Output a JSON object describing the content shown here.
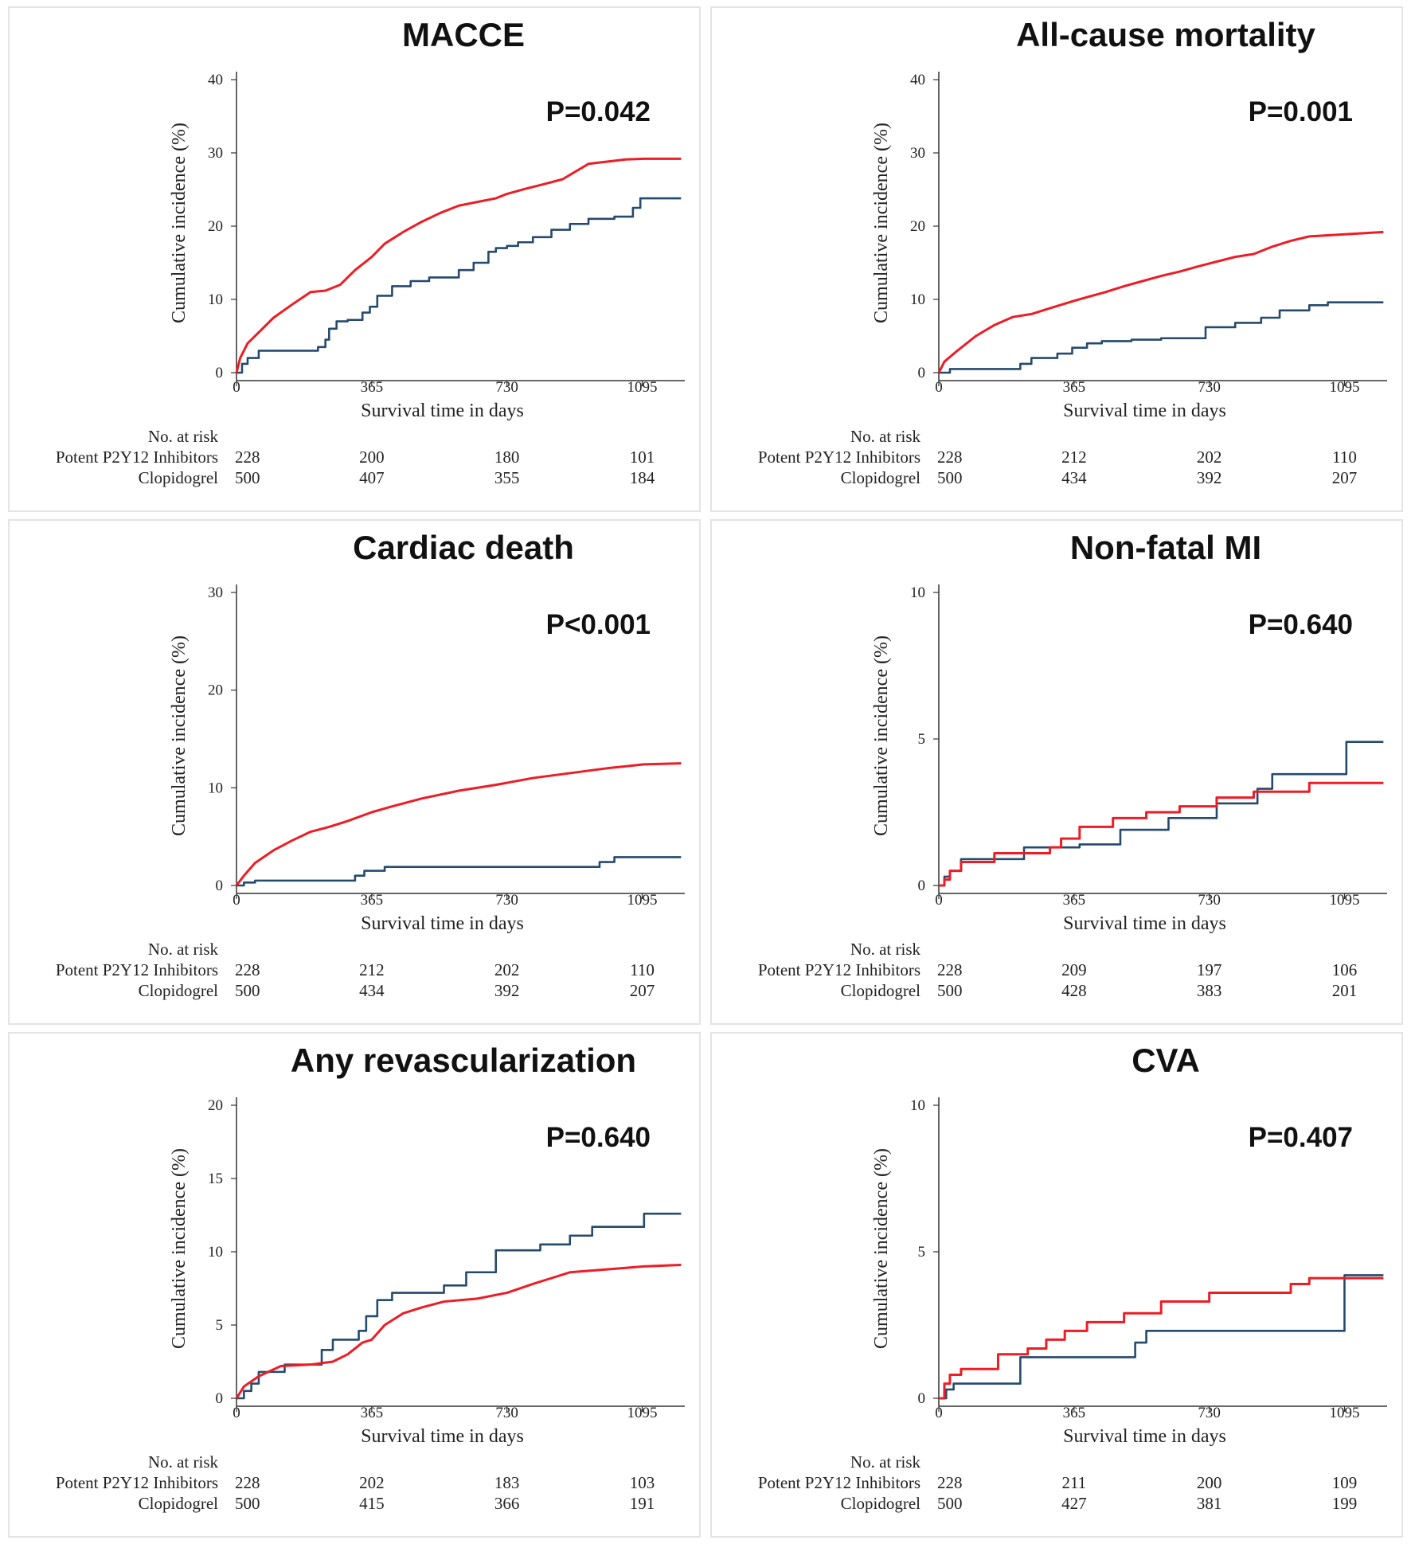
{
  "colors": {
    "potent": "#ee1c25",
    "clopidogrel": "#244a6e",
    "axis": "#333333"
  },
  "shared": {
    "xlabel": "Survival time in days",
    "ylabel": "Cumulative incidence (%)",
    "risk_header": "No. at risk",
    "group_potent": "Potent P2Y12 Inhibitors",
    "group_clopidogrel": "Clopidogrel"
  },
  "chart_data": [
    {
      "type": "line",
      "title": "MACCE",
      "pvalue": "P=0.042",
      "xlabel": "Survival time in days",
      "ylabel": "Cumulative incidence (%)",
      "xticks": [
        0,
        365,
        730,
        1095
      ],
      "xlim": [
        0,
        1210
      ],
      "yticks": [
        0,
        10,
        20,
        30,
        40
      ],
      "ylim": [
        0,
        40
      ],
      "risk": {
        "potent": [
          "228",
          "200",
          "180",
          "101"
        ],
        "clopidogrel": [
          "500",
          "407",
          "355",
          "184"
        ]
      },
      "series": [
        {
          "name": "Clopidogrel",
          "color": "#244a6e",
          "step": true,
          "x": [
            0,
            15,
            30,
            60,
            220,
            240,
            250,
            270,
            300,
            340,
            360,
            380,
            420,
            470,
            520,
            600,
            640,
            680,
            700,
            730,
            760,
            800,
            850,
            900,
            950,
            1020,
            1070,
            1090,
            1200
          ],
          "y": [
            0,
            1.2,
            2,
            3,
            3.5,
            4.5,
            6,
            7,
            7.2,
            8.2,
            9,
            10.5,
            11.8,
            12.5,
            13,
            14,
            15,
            16.5,
            17,
            17.3,
            17.8,
            18.5,
            19.5,
            20.3,
            21,
            21.3,
            22.5,
            23.8,
            23.8
          ]
        },
        {
          "name": "Potent P2Y12 Inhibitors",
          "color": "#ee1c25",
          "step": false,
          "x": [
            0,
            10,
            30,
            60,
            100,
            150,
            200,
            240,
            280,
            320,
            365,
            400,
            450,
            500,
            550,
            600,
            650,
            700,
            730,
            780,
            820,
            880,
            950,
            1000,
            1050,
            1100,
            1200
          ],
          "y": [
            0,
            2,
            4,
            5.5,
            7.5,
            9.3,
            11,
            11.2,
            12,
            14,
            15.8,
            17.6,
            19.2,
            20.6,
            21.8,
            22.8,
            23.3,
            23.8,
            24.4,
            25.1,
            25.6,
            26.4,
            28.5,
            28.8,
            29.1,
            29.2,
            29.2
          ]
        }
      ]
    },
    {
      "type": "line",
      "title": "All-cause mortality",
      "pvalue": "P=0.001",
      "xlabel": "Survival time in days",
      "ylabel": "Cumulative incidence (%)",
      "xticks": [
        0,
        365,
        730,
        1095
      ],
      "xlim": [
        0,
        1210
      ],
      "yticks": [
        0,
        10,
        20,
        30,
        40
      ],
      "ylim": [
        0,
        40
      ],
      "risk": {
        "potent": [
          "228",
          "212",
          "202",
          "110"
        ],
        "clopidogrel": [
          "500",
          "434",
          "392",
          "207"
        ]
      },
      "series": [
        {
          "name": "Clopidogrel",
          "color": "#244a6e",
          "step": true,
          "x": [
            0,
            30,
            60,
            220,
            250,
            320,
            360,
            400,
            440,
            520,
            600,
            720,
            800,
            870,
            920,
            1000,
            1050,
            1200
          ],
          "y": [
            0,
            0.5,
            0.5,
            1.2,
            2,
            2.6,
            3.4,
            4,
            4.3,
            4.5,
            4.7,
            6.2,
            6.8,
            7.5,
            8.5,
            9.2,
            9.6,
            9.6
          ]
        },
        {
          "name": "Potent P2Y12 Inhibitors",
          "color": "#ee1c25",
          "step": false,
          "x": [
            0,
            15,
            50,
            100,
            150,
            200,
            250,
            300,
            365,
            400,
            450,
            500,
            550,
            600,
            650,
            700,
            730,
            800,
            850,
            900,
            950,
            1000,
            1100,
            1200
          ],
          "y": [
            0,
            1.5,
            3,
            5,
            6.5,
            7.6,
            8,
            8.8,
            9.8,
            10.3,
            11,
            11.8,
            12.5,
            13.2,
            13.8,
            14.5,
            14.9,
            15.8,
            16.2,
            17.2,
            18,
            18.6,
            18.9,
            19.2
          ]
        }
      ]
    },
    {
      "type": "line",
      "title": "Cardiac death",
      "pvalue": "P<0.001",
      "xlabel": "Survival time in days",
      "ylabel": "Cumulative incidence (%)",
      "xticks": [
        0,
        365,
        730,
        1095
      ],
      "xlim": [
        0,
        1210
      ],
      "yticks": [
        0,
        10,
        20,
        30
      ],
      "ylim": [
        0,
        30
      ],
      "risk": {
        "potent": [
          "228",
          "212",
          "202",
          "110"
        ],
        "clopidogrel": [
          "500",
          "434",
          "392",
          "207"
        ]
      },
      "series": [
        {
          "name": "Clopidogrel",
          "color": "#244a6e",
          "step": true,
          "x": [
            0,
            20,
            50,
            300,
            320,
            345,
            400,
            950,
            980,
            1020,
            1200
          ],
          "y": [
            0,
            0.3,
            0.5,
            0.5,
            1,
            1.5,
            1.9,
            1.9,
            2.4,
            2.9,
            2.9
          ]
        },
        {
          "name": "Potent P2Y12 Inhibitors",
          "color": "#ee1c25",
          "step": false,
          "x": [
            0,
            20,
            50,
            100,
            150,
            200,
            250,
            300,
            365,
            420,
            500,
            600,
            700,
            800,
            900,
            1000,
            1050,
            1100,
            1200
          ],
          "y": [
            0,
            1,
            2.3,
            3.6,
            4.6,
            5.5,
            6,
            6.6,
            7.5,
            8.1,
            8.9,
            9.7,
            10.3,
            11,
            11.5,
            12,
            12.2,
            12.4,
            12.5
          ]
        }
      ]
    },
    {
      "type": "line",
      "title": "Non-fatal MI",
      "pvalue": "P=0.640",
      "xlabel": "Survival time in days",
      "ylabel": "Cumulative incidence (%)",
      "xticks": [
        0,
        365,
        730,
        1095
      ],
      "xlim": [
        0,
        1210
      ],
      "yticks": [
        0,
        5,
        10
      ],
      "ylim": [
        0,
        10
      ],
      "risk": {
        "potent": [
          "228",
          "209",
          "197",
          "106"
        ],
        "clopidogrel": [
          "500",
          "428",
          "383",
          "201"
        ]
      },
      "series": [
        {
          "name": "Clopidogrel",
          "color": "#244a6e",
          "step": true,
          "x": [
            0,
            15,
            30,
            60,
            150,
            230,
            380,
            490,
            620,
            750,
            860,
            900,
            1100,
            1200
          ],
          "y": [
            0,
            0.3,
            0.5,
            0.9,
            0.9,
            1.3,
            1.4,
            1.9,
            2.3,
            2.8,
            3.3,
            3.8,
            4.9,
            4.9
          ]
        },
        {
          "name": "Potent P2Y12 Inhibitors",
          "color": "#ee1c25",
          "step": true,
          "x": [
            0,
            15,
            30,
            60,
            150,
            300,
            330,
            380,
            470,
            560,
            650,
            750,
            850,
            1000,
            1200
          ],
          "y": [
            0,
            0.2,
            0.5,
            0.8,
            1.1,
            1.3,
            1.6,
            2,
            2.3,
            2.5,
            2.7,
            3,
            3.2,
            3.5,
            3.5
          ]
        }
      ]
    },
    {
      "type": "line",
      "title": "Any revascularization",
      "pvalue": "P=0.640",
      "xlabel": "Survival time in days",
      "ylabel": "Cumulative incidence (%)",
      "xticks": [
        0,
        365,
        730,
        1095
      ],
      "xlim": [
        0,
        1210
      ],
      "yticks": [
        0,
        5,
        10,
        15,
        20
      ],
      "ylim": [
        0,
        20
      ],
      "risk": {
        "potent": [
          "228",
          "202",
          "183",
          "103"
        ],
        "clopidogrel": [
          "500",
          "415",
          "366",
          "191"
        ]
      },
      "series": [
        {
          "name": "Clopidogrel",
          "color": "#244a6e",
          "step": true,
          "x": [
            0,
            20,
            40,
            60,
            130,
            230,
            260,
            330,
            350,
            380,
            420,
            560,
            620,
            700,
            820,
            900,
            960,
            1100,
            1200
          ],
          "y": [
            0,
            0.5,
            1,
            1.8,
            2.3,
            3.3,
            4,
            4.6,
            5.6,
            6.7,
            7.2,
            7.7,
            8.6,
            10.1,
            10.5,
            11.1,
            11.7,
            12.6,
            12.6
          ]
        },
        {
          "name": "Potent P2Y12 Inhibitors",
          "color": "#ee1c25",
          "step": false,
          "x": [
            0,
            20,
            60,
            120,
            200,
            260,
            300,
            340,
            365,
            400,
            450,
            500,
            560,
            650,
            730,
            800,
            850,
            900,
            1000,
            1100,
            1200
          ],
          "y": [
            0,
            0.8,
            1.5,
            2.2,
            2.3,
            2.5,
            3,
            3.8,
            4,
            5,
            5.8,
            6.2,
            6.6,
            6.8,
            7.2,
            7.8,
            8.2,
            8.6,
            8.8,
            9,
            9.1
          ]
        }
      ]
    },
    {
      "type": "line",
      "title": "CVA",
      "pvalue": "P=0.407",
      "xlabel": "Survival time in days",
      "ylabel": "Cumulative incidence (%)",
      "xticks": [
        0,
        365,
        730,
        1095
      ],
      "xlim": [
        0,
        1210
      ],
      "yticks": [
        0,
        5,
        10
      ],
      "ylim": [
        0,
        10
      ],
      "risk": {
        "potent": [
          "228",
          "211",
          "200",
          "109"
        ],
        "clopidogrel": [
          "500",
          "427",
          "381",
          "199"
        ]
      },
      "series": [
        {
          "name": "Clopidogrel",
          "color": "#244a6e",
          "step": true,
          "x": [
            0,
            20,
            40,
            220,
            530,
            560,
            1095,
            1200
          ],
          "y": [
            0,
            0.3,
            0.5,
            1.4,
            1.9,
            2.3,
            4.2,
            4.2
          ]
        },
        {
          "name": "Potent P2Y12 Inhibitors",
          "color": "#ee1c25",
          "step": true,
          "x": [
            0,
            15,
            30,
            60,
            160,
            240,
            290,
            340,
            400,
            500,
            600,
            730,
            950,
            1000,
            1200
          ],
          "y": [
            0,
            0.5,
            0.8,
            1,
            1.5,
            1.7,
            2,
            2.3,
            2.6,
            2.9,
            3.3,
            3.6,
            3.9,
            4.1,
            4.1
          ]
        }
      ]
    }
  ]
}
